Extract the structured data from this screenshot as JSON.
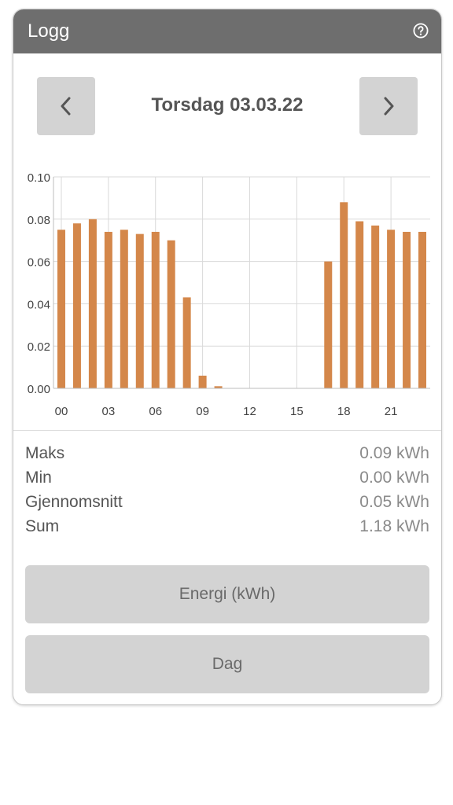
{
  "header": {
    "title": "Logg",
    "help_icon": "help-circle-icon"
  },
  "date_nav": {
    "label": "Torsdag 03.03.22",
    "prev_icon": "chevron-left-icon",
    "next_icon": "chevron-right-icon"
  },
  "chart_data": {
    "type": "bar",
    "categories": [
      "00",
      "01",
      "02",
      "03",
      "04",
      "05",
      "06",
      "07",
      "08",
      "09",
      "10",
      "11",
      "12",
      "13",
      "14",
      "15",
      "16",
      "17",
      "18",
      "19",
      "20",
      "21",
      "22",
      "23"
    ],
    "values": [
      0.075,
      0.078,
      0.08,
      0.074,
      0.075,
      0.073,
      0.074,
      0.07,
      0.043,
      0.006,
      0.001,
      0,
      0,
      0,
      0,
      0,
      0,
      0.06,
      0.088,
      0.079,
      0.077,
      0.075,
      0.074,
      0.074
    ],
    "x_tick_labels": [
      "00",
      "03",
      "06",
      "09",
      "12",
      "15",
      "18",
      "21"
    ],
    "y_tick_labels": [
      "0.00",
      "0.02",
      "0.04",
      "0.06",
      "0.08",
      "0.10"
    ],
    "ylim": [
      0,
      0.1
    ],
    "grid": true,
    "bar_color": "#d4874a",
    "grid_color": "#d9d9d9"
  },
  "stats": [
    {
      "label": "Maks",
      "value": "0.09 kWh"
    },
    {
      "label": "Min",
      "value": "0.00 kWh"
    },
    {
      "label": "Gjennomsnitt",
      "value": "0.05 kWh"
    },
    {
      "label": "Sum",
      "value": "1.18 kWh"
    }
  ],
  "buttons": {
    "energy_label": "Energi (kWh)",
    "period_label": "Dag"
  }
}
